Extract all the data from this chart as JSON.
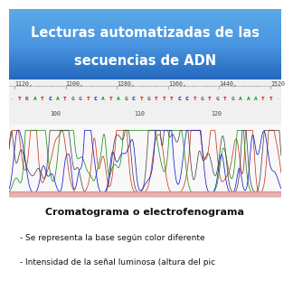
{
  "title_line1": "Lecturas automatizadas de las",
  "title_line2": "secuencias de ADN",
  "title_bg_top": "#4a90d0",
  "title_bg_bottom": "#2060a8",
  "bottom_title": "Cromatograma o electrofenograma",
  "bottom_line1": " - Se representa la base según color diferente",
  "bottom_line2": " - Intensidad de la señal luminosa (altura del pic",
  "sequence_numbers_top": [
    "1120,",
    "1200,",
    "1280,",
    "1360,",
    "1440,",
    "1520"
  ],
  "sequence_letters": [
    "T",
    "R",
    "A",
    "T",
    "C",
    "A",
    "T",
    "G",
    "G",
    "T",
    "C",
    "A",
    "T",
    "A",
    "G",
    "C",
    "T",
    "G",
    "T",
    "T",
    "T",
    "C",
    "C",
    "T",
    "G",
    "T",
    "G",
    "T",
    "G",
    "A",
    "A",
    "A",
    "T",
    "T"
  ],
  "sequence_numbers_bottom": [
    [
      "100",
      0.17
    ],
    [
      "110",
      0.48
    ],
    [
      "120",
      0.76
    ]
  ],
  "letter_colors": {
    "A": "#009900",
    "T": "#dd0000",
    "C": "#0000cc",
    "G": "#555555",
    "R": "#555555",
    "-": "#888888"
  },
  "chrom_bg": "#f8f8f8",
  "chrom_line_bg": "#ffe0e0",
  "bottom_bg": "#ffffff"
}
